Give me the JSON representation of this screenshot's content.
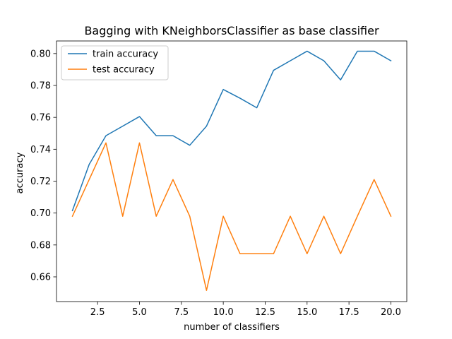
{
  "chart_data": {
    "type": "line",
    "title": "Bagging with KNeighborsClassifier as base classifier",
    "xlabel": "number of classifiers",
    "ylabel": "accuracy",
    "xlim": [
      0.05,
      20.95
    ],
    "ylim": [
      0.6445,
      0.8079
    ],
    "x": [
      1,
      2,
      3,
      4,
      5,
      6,
      7,
      8,
      9,
      10,
      11,
      12,
      13,
      14,
      15,
      16,
      17,
      18,
      19,
      20
    ],
    "series": [
      {
        "name": "train accuracy",
        "color": "#1f77b4",
        "values": [
          0.7015,
          0.7305,
          0.7485,
          0.7545,
          0.7605,
          0.7485,
          0.7485,
          0.7425,
          0.7545,
          0.7775,
          0.772,
          0.766,
          0.7895,
          0.7955,
          0.8015,
          0.7955,
          0.7835,
          0.8015,
          0.8015,
          0.7955
        ]
      },
      {
        "name": "test accuracy",
        "color": "#ff7f0e",
        "values": [
          0.698,
          0.721,
          0.744,
          0.698,
          0.744,
          0.698,
          0.721,
          0.698,
          0.6515,
          0.698,
          0.6745,
          0.6745,
          0.6745,
          0.698,
          0.6745,
          0.698,
          0.6745,
          0.698,
          0.721,
          0.698
        ]
      }
    ],
    "xticks": [
      2.5,
      5.0,
      7.5,
      10.0,
      12.5,
      15.0,
      17.5,
      20.0
    ],
    "xtick_labels": [
      "2.5",
      "5.0",
      "7.5",
      "10.0",
      "12.5",
      "15.0",
      "17.5",
      "20.0"
    ],
    "yticks": [
      0.66,
      0.68,
      0.7,
      0.72,
      0.74,
      0.76,
      0.78,
      0.8
    ],
    "ytick_labels": [
      "0.66",
      "0.68",
      "0.70",
      "0.72",
      "0.74",
      "0.76",
      "0.78",
      "0.80"
    ],
    "legend_position": "top-left",
    "grid": false
  }
}
